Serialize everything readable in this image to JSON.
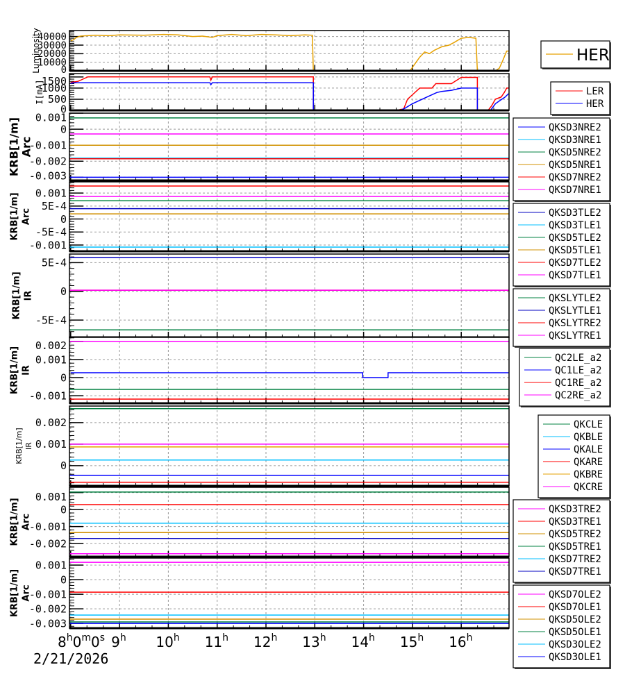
{
  "x_axis": {
    "first_label": {
      "base": "8",
      "h": "h",
      "m_val": "0",
      "m": "m",
      "s_val": "0",
      "s": "s"
    },
    "hour_labels": [
      "9",
      "10",
      "11",
      "12",
      "13",
      "14",
      "15",
      "16"
    ],
    "hour_suffix": "h",
    "date": "2/21/2026",
    "range_hours": [
      8,
      17
    ]
  },
  "chart_data": [
    {
      "type": "line",
      "ylabel": [
        "Luminosity"
      ],
      "ylim": [
        0,
        47000
      ],
      "yticks": [
        0,
        10000,
        20000,
        30000,
        40000
      ],
      "ytick_labels": [
        "0",
        "10000",
        "20000",
        "30000",
        "40000"
      ],
      "grid": true,
      "legend": "right",
      "series": [
        {
          "name": "HER",
          "color": "#e6a100",
          "points": [
            [
              8,
              35000
            ],
            [
              8.05,
              36000
            ],
            [
              8.12,
              39000
            ],
            [
              8.2,
              40500
            ],
            [
              8.5,
              41500
            ],
            [
              8.8,
              41000
            ],
            [
              9.0,
              42000
            ],
            [
              9.5,
              41500
            ],
            [
              9.9,
              42500
            ],
            [
              10.2,
              42000
            ],
            [
              10.5,
              40000
            ],
            [
              10.7,
              40500
            ],
            [
              10.9,
              39000
            ],
            [
              11.0,
              41000
            ],
            [
              11.3,
              42500
            ],
            [
              11.6,
              41000
            ],
            [
              11.9,
              42500
            ],
            [
              12.2,
              42000
            ],
            [
              12.5,
              41000
            ],
            [
              12.8,
              42000
            ],
            [
              12.95,
              41500
            ],
            [
              12.97,
              0
            ],
            [
              14.95,
              0
            ],
            [
              15.05,
              8000
            ],
            [
              15.15,
              16000
            ],
            [
              15.25,
              22000
            ],
            [
              15.35,
              20000
            ],
            [
              15.45,
              24000
            ],
            [
              15.6,
              28000
            ],
            [
              15.75,
              30000
            ],
            [
              15.85,
              33000
            ],
            [
              16.0,
              38000
            ],
            [
              16.15,
              39000
            ],
            [
              16.3,
              38000
            ],
            [
              16.33,
              0
            ],
            [
              16.7,
              0
            ],
            [
              16.78,
              3000
            ],
            [
              16.85,
              12000
            ],
            [
              16.93,
              23000
            ],
            [
              16.97,
              23000
            ]
          ]
        }
      ]
    },
    {
      "type": "line",
      "ylabel": [
        "I[mA]"
      ],
      "ylim": [
        0,
        1650
      ],
      "yticks": [
        0,
        500,
        1000,
        1500
      ],
      "ytick_labels": [
        "0",
        "500",
        "1000",
        "1500"
      ],
      "grid": true,
      "legend": "right",
      "series": [
        {
          "name": "LER",
          "color": "#ff0000",
          "points": [
            [
              8,
              1250
            ],
            [
              8.15,
              1300
            ],
            [
              8.25,
              1400
            ],
            [
              8.35,
              1500
            ],
            [
              10.85,
              1500
            ],
            [
              10.87,
              1350
            ],
            [
              10.9,
              1500
            ],
            [
              12.97,
              1500
            ],
            [
              12.97,
              0
            ],
            [
              14.7,
              0
            ],
            [
              14.75,
              40
            ],
            [
              14.82,
              60
            ],
            [
              14.9,
              500
            ],
            [
              15.0,
              700
            ],
            [
              15.15,
              1000
            ],
            [
              15.4,
              1000
            ],
            [
              15.48,
              1200
            ],
            [
              15.8,
              1200
            ],
            [
              15.87,
              1300
            ],
            [
              16.0,
              1480
            ],
            [
              16.33,
              1480
            ],
            [
              16.33,
              0
            ],
            [
              16.55,
              0
            ],
            [
              16.62,
              200
            ],
            [
              16.7,
              500
            ],
            [
              16.82,
              600
            ],
            [
              16.88,
              800
            ],
            [
              16.93,
              1000
            ],
            [
              16.97,
              1000
            ]
          ]
        },
        {
          "name": "HER",
          "color": "#0000ff",
          "points": [
            [
              8,
              1200
            ],
            [
              8.05,
              1240
            ],
            [
              10.85,
              1240
            ],
            [
              10.87,
              1150
            ],
            [
              10.9,
              1240
            ],
            [
              12.97,
              1240
            ],
            [
              12.97,
              0
            ],
            [
              14.75,
              0
            ],
            [
              14.85,
              100
            ],
            [
              15.0,
              300
            ],
            [
              15.1,
              400
            ],
            [
              15.3,
              600
            ],
            [
              15.5,
              800
            ],
            [
              15.6,
              850
            ],
            [
              15.8,
              900
            ],
            [
              16.0,
              1000
            ],
            [
              16.33,
              1000
            ],
            [
              16.33,
              0
            ],
            [
              16.6,
              0
            ],
            [
              16.7,
              300
            ],
            [
              16.8,
              450
            ],
            [
              16.9,
              600
            ],
            [
              16.97,
              750
            ]
          ]
        }
      ]
    },
    {
      "type": "line",
      "ylabel": [
        "KRB[1/m]",
        "Arc"
      ],
      "ylim": [
        -0.0032,
        0.001
      ],
      "yticks": [
        -0.003,
        -0.002,
        -0.001,
        0,
        0.001
      ],
      "ytick_labels": [
        "-0.003",
        "-0.002",
        "-0.001",
        "0",
        "0.001"
      ],
      "grid": true,
      "legend": "right",
      "series": [
        {
          "name": "QKSD3NRE2",
          "color": "#0000ff",
          "value": -0.003
        },
        {
          "name": "QKSD3NRE1",
          "color": "#00bfff",
          "value": -0.0018
        },
        {
          "name": "QKSD5NRE2",
          "color": "#008040",
          "value": 0.0007
        },
        {
          "name": "QKSD5NRE1",
          "color": "#d09000",
          "value": -0.001
        },
        {
          "name": "QKSD7NRE2",
          "color": "#ff0000",
          "value": -0.00185
        },
        {
          "name": "QKSD7NRE1",
          "color": "#ff00ff",
          "value": -0.0003
        }
      ]
    },
    {
      "type": "line",
      "ylabel": [
        "KRB[1/m]",
        "Arc"
      ],
      "ylim": [
        -0.00124,
        0.00143
      ],
      "yticks": [
        -0.001,
        -0.0005,
        0,
        0.0005,
        0.001
      ],
      "ytick_labels": [
        "-0.001",
        "-5E-4",
        "0",
        "5E-4",
        "0.001"
      ],
      "grid": true,
      "legend": "right",
      "series": [
        {
          "name": "QKSD3TLE2",
          "color": "#0000c0",
          "value": 0.0004
        },
        {
          "name": "QKSD3TLE1",
          "color": "#00bfff",
          "value": -0.00108
        },
        {
          "name": "QKSD5TLE2",
          "color": "#008040",
          "value": 0.0007
        },
        {
          "name": "QKSD5TLE1",
          "color": "#d09000",
          "value": 0.0002
        },
        {
          "name": "QKSD7TLE2",
          "color": "#ff0000",
          "value": 0.00127
        },
        {
          "name": "QKSD7TLE1",
          "color": "#ff00ff",
          "value": 0.00087
        }
      ]
    },
    {
      "type": "line",
      "ylabel": [
        "KRB[1/m]",
        "IR"
      ],
      "ylim": [
        -0.0008,
        0.00065
      ],
      "yticks": [
        -0.0005,
        0,
        0.0005
      ],
      "ytick_labels": [
        "-5E-4",
        "0",
        "5E-4"
      ],
      "grid": true,
      "legend": "right",
      "series": [
        {
          "name": "QKSLYTLE2",
          "color": "#008040",
          "value": -0.00067
        },
        {
          "name": "QKSLYTLE1",
          "color": "#0000c0",
          "value": 0.00059
        },
        {
          "name": "QKSLYTRE2",
          "color": "#ff0000",
          "value": 2e-05
        },
        {
          "name": "QKSLYTRE1",
          "color": "#ff00ff",
          "value": 2e-05
        }
      ]
    },
    {
      "type": "line",
      "ylabel": [
        "KRB[1/m]",
        "IR"
      ],
      "ylim": [
        -0.00142,
        0.00223
      ],
      "yticks": [
        -0.001,
        0,
        0.001,
        0.002
      ],
      "ytick_labels": [
        "-0.001",
        "0",
        "0.001",
        "0.002"
      ],
      "grid": true,
      "legend": "right",
      "series": [
        {
          "name": "QC2LE_a2",
          "color": "#008040",
          "value": -0.00065
        },
        {
          "name": "QC1LE_a2",
          "color": "#0000ff",
          "points": [
            [
              8,
              0.00027
            ],
            [
              13.98,
              0.00027
            ],
            [
              13.98,
              0
            ],
            [
              14.5,
              0
            ],
            [
              14.5,
              0.00027
            ],
            [
              16.97,
              0.00027
            ]
          ]
        },
        {
          "name": "QC1RE_a2",
          "color": "#ff0000",
          "value": -0.00119
        },
        {
          "name": "QC2RE_a2",
          "color": "#ff00ff",
          "value": 0.002
        }
      ]
    },
    {
      "type": "line",
      "ylabel": [
        "KRB[1/m]",
        "IR"
      ],
      "ylim": [
        -0.00094,
        0.00277
      ],
      "yticks": [
        0,
        0.001,
        0.002
      ],
      "ytick_labels": [
        "0",
        "0.001",
        "0.002"
      ],
      "grid": true,
      "legend": "right",
      "series": [
        {
          "name": "QKCLE",
          "color": "#008040",
          "value": 0.00265
        },
        {
          "name": "QKBLE",
          "color": "#00bfff",
          "value": 0.00026
        },
        {
          "name": "QKALE",
          "color": "#0000ff",
          "value": -0.00045
        },
        {
          "name": "QKARE",
          "color": "#ff0000",
          "value": -0.00077
        },
        {
          "name": "QKBRE",
          "color": "#e6a100",
          "value": 0.00087
        },
        {
          "name": "QKCRE",
          "color": "#ff00ff",
          "value": 0.001
        }
      ]
    },
    {
      "type": "line",
      "ylabel": [
        "KRB[1/m]",
        "Arc"
      ],
      "ylim": [
        -0.00277,
        0.00131
      ],
      "yticks": [
        -0.002,
        -0.001,
        0,
        0.001
      ],
      "ytick_labels": [
        "-0.002",
        "-0.001",
        "0",
        "0.001"
      ],
      "grid": true,
      "legend": "right",
      "series": [
        {
          "name": "QKSD3TRE2",
          "color": "#ff00ff",
          "value": -0.0026
        },
        {
          "name": "QKSD3TRE1",
          "color": "#ff0000",
          "value": 0.00029
        },
        {
          "name": "QKSD5TRE2",
          "color": "#d09000",
          "value": -0.00135
        },
        {
          "name": "QKSD5TRE1",
          "color": "#008040",
          "value": 0.00103
        },
        {
          "name": "QKSD7TRE2",
          "color": "#00bfff",
          "value": -0.0008
        },
        {
          "name": "QKSD7TRE1",
          "color": "#0000c0",
          "value": -0.0017
        }
      ]
    },
    {
      "type": "line",
      "ylabel": [
        "KRB[1/m]",
        "Arc"
      ],
      "ylim": [
        -0.00333,
        0.00148
      ],
      "yticks": [
        -0.003,
        -0.002,
        -0.001,
        0,
        0.001
      ],
      "ytick_labels": [
        "-0.003",
        "-0.002",
        "-0.001",
        "0",
        "0.001"
      ],
      "grid": true,
      "legend": "right",
      "series": [
        {
          "name": "QKSD7OLE2",
          "color": "#ff00ff",
          "value": 0.00119
        },
        {
          "name": "QKSD7OLE1",
          "color": "#ff0000",
          "value": -0.00086
        },
        {
          "name": "QKSD5OLE2",
          "color": "#d09000",
          "value": -0.00271
        },
        {
          "name": "QKSD5OLE1",
          "color": "#008040",
          "value": -0.0029
        },
        {
          "name": "QKSD3OLE2",
          "color": "#00bfff",
          "value": -0.00243
        },
        {
          "name": "QKSD3OLE1",
          "color": "#0000ff",
          "value": -0.003
        }
      ]
    }
  ]
}
